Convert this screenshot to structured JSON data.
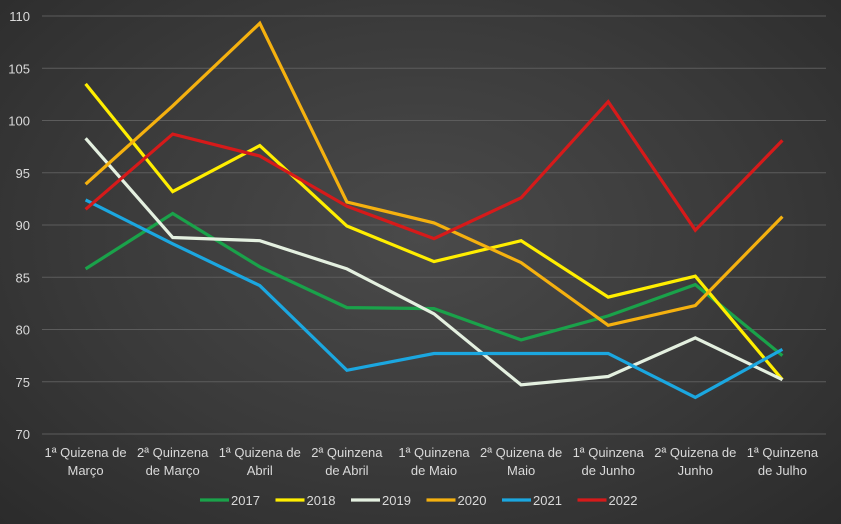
{
  "chart_data": {
    "type": "line",
    "title": "",
    "xlabel": "",
    "ylabel": "",
    "ylim": [
      70,
      110
    ],
    "yticks": [
      70,
      75,
      80,
      85,
      90,
      95,
      100,
      105,
      110
    ],
    "grid": true,
    "legend_position": "bottom",
    "categories": [
      [
        "1ª Quizena de",
        "Março"
      ],
      [
        "2ª Quinzena",
        "de Março"
      ],
      [
        "1ª Quizena de",
        "Abril"
      ],
      [
        "2ª Quinzena",
        "de Abril"
      ],
      [
        "1ª Quinzena",
        "de Maio"
      ],
      [
        "2ª Quizena de",
        "Maio"
      ],
      [
        "1ª Quinzena",
        "de Junho"
      ],
      [
        "2ª Quizena de",
        "Junho"
      ],
      [
        "1ª Quinzena",
        "de Julho"
      ]
    ],
    "series": [
      {
        "name": "2017",
        "color": "#1aa24a",
        "values": [
          85.8,
          91.1,
          86.0,
          82.1,
          82.0,
          79.0,
          81.3,
          84.3,
          77.5
        ]
      },
      {
        "name": "2018",
        "color": "#ffee00",
        "values": [
          103.5,
          93.2,
          97.6,
          89.9,
          86.5,
          88.5,
          83.1,
          85.1,
          75.2
        ]
      },
      {
        "name": "2019",
        "color": "#e4f0e0",
        "values": [
          98.3,
          88.8,
          88.5,
          85.8,
          81.5,
          74.7,
          75.5,
          79.2,
          75.2
        ]
      },
      {
        "name": "2020",
        "color": "#f5b10f",
        "values": [
          93.9,
          101.4,
          109.3,
          92.2,
          90.2,
          86.4,
          80.4,
          82.3,
          90.8
        ]
      },
      {
        "name": "2021",
        "color": "#1ba7e0",
        "values": [
          92.4,
          88.2,
          84.2,
          76.1,
          77.7,
          77.7,
          77.7,
          73.5,
          78.1
        ]
      },
      {
        "name": "2022",
        "color": "#d61a1a",
        "values": [
          91.5,
          98.7,
          96.6,
          91.8,
          88.7,
          92.6,
          101.8,
          89.5,
          98.1
        ]
      }
    ]
  }
}
